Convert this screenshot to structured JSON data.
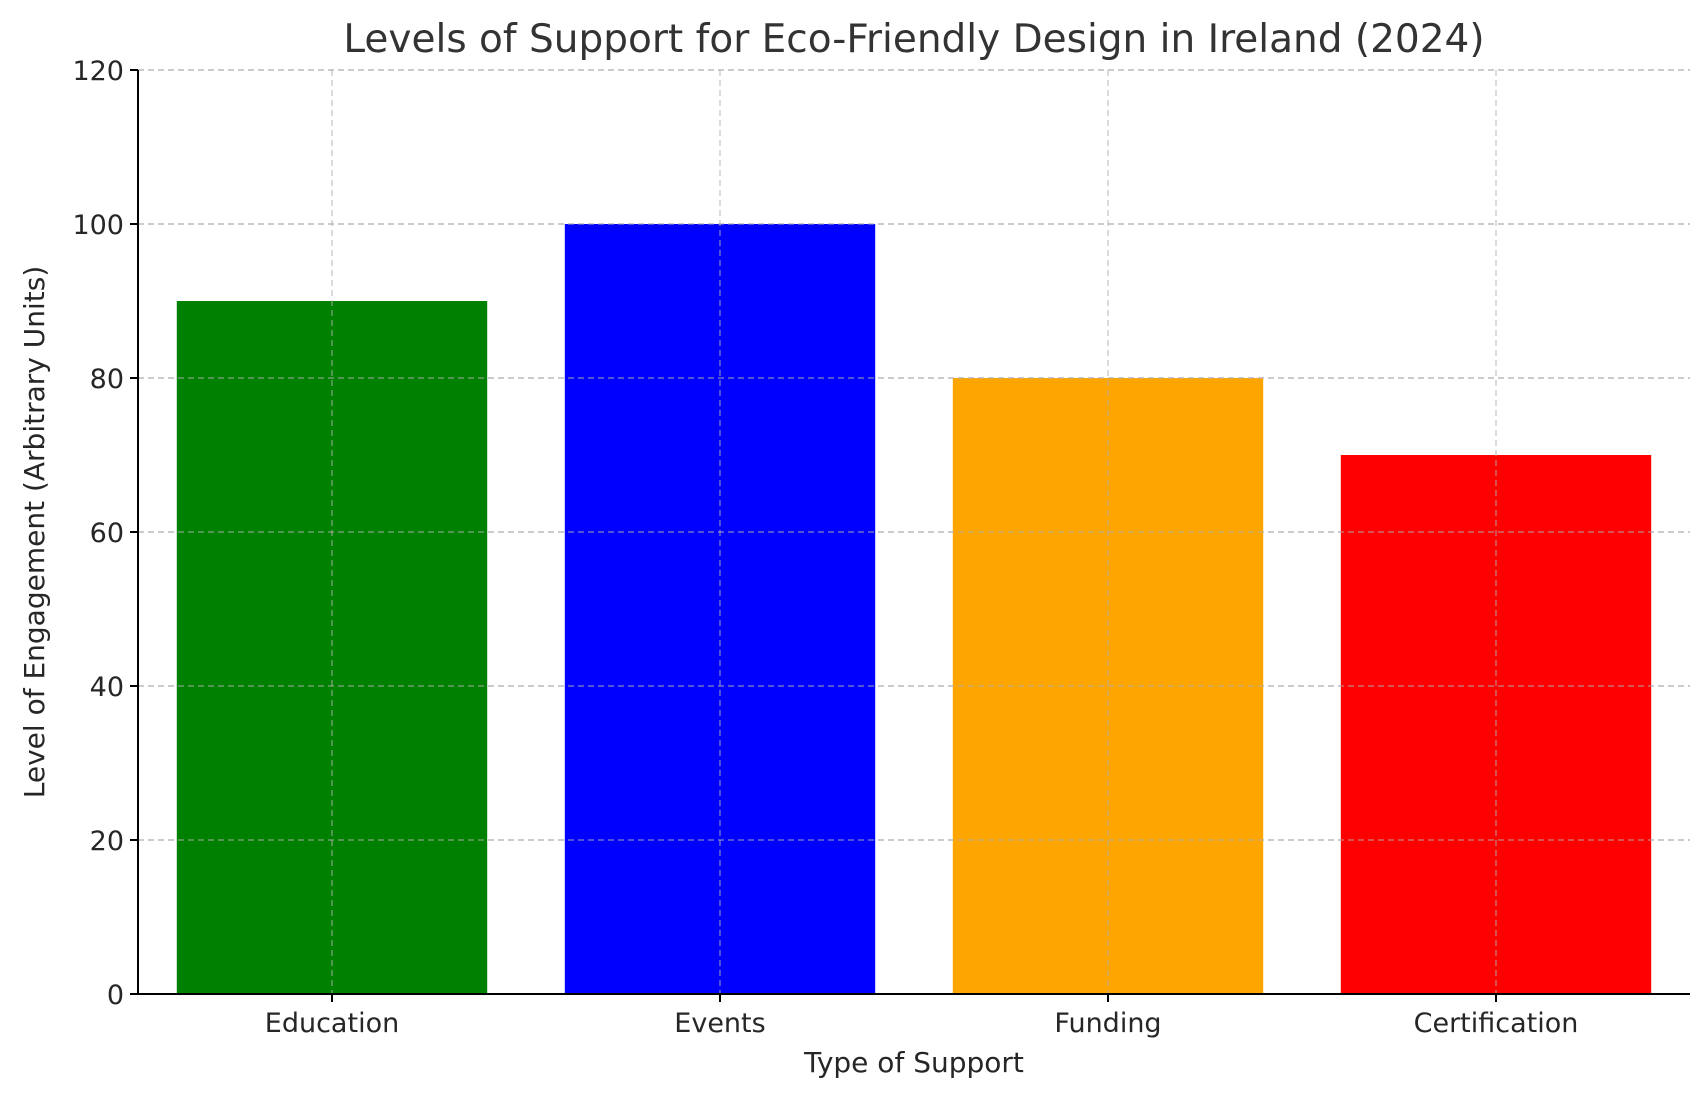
{
  "chart_data": {
    "type": "bar",
    "title": "Levels of Support for Eco-Friendly Design in Ireland (2024)",
    "xlabel": "Type of Support",
    "ylabel": "Level of Engagement (Arbitrary Units)",
    "categories": [
      "Education",
      "Events",
      "Funding",
      "Certification"
    ],
    "values": [
      90,
      100,
      80,
      70
    ],
    "colors": [
      "#008000",
      "#0000ff",
      "#ffa500",
      "#ff0000"
    ],
    "ylim": [
      0,
      120
    ],
    "yticks": [
      0,
      20,
      40,
      60,
      80,
      100,
      120
    ],
    "grid": true
  }
}
